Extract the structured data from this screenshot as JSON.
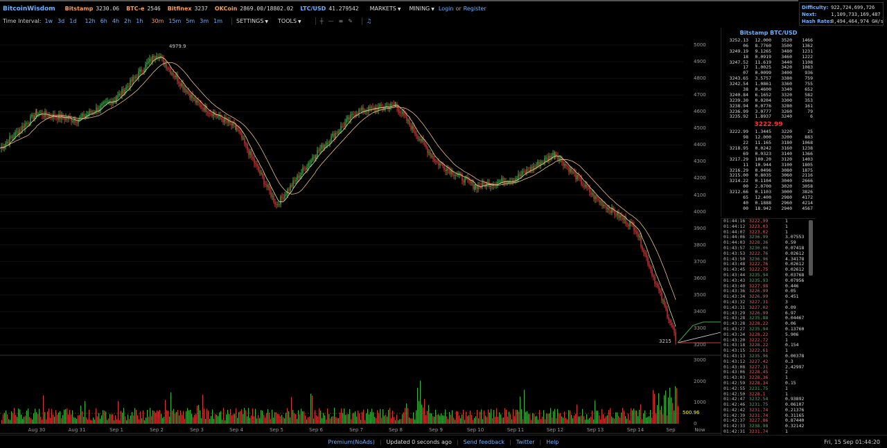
{
  "header": {
    "brand": "BitcoinWisdom",
    "markets": [
      {
        "name": "Bitstamp",
        "value": "3230.06"
      },
      {
        "name": "BTC-e",
        "value": "2546"
      },
      {
        "name": "Bitfinex",
        "value": "3237"
      },
      {
        "name": "OKCoin",
        "value": "2869.00/18802.02"
      },
      {
        "name": "LTC/USD",
        "value": "41.279542"
      }
    ],
    "menus": {
      "markets": "MARKETS",
      "mining": "MINING"
    },
    "login": "Login",
    "or": "or",
    "register": "Register"
  },
  "stats": {
    "difficulty_label": "Difficulty:",
    "difficulty": "922,724,699,726",
    "next_label": "Next:",
    "next": "1,109,733,169,487",
    "hashrate_label": "Hash Rate:",
    "hashrate": "8,494,464,974 GH/s"
  },
  "toolbar": {
    "label": "Time Interval:",
    "intervals": [
      "1w",
      "3d",
      "1d",
      "12h",
      "6h",
      "4h",
      "2h",
      "1h",
      "30m",
      "15m",
      "5m",
      "3m",
      "1m"
    ],
    "active_interval": "30m",
    "settings": "SETTINGS",
    "tools": "TOOLS",
    "icons": [
      "crosshair-icon",
      "horizontal-line-icon",
      "parallel-lines-icon",
      "pencil-icon",
      "bell-icon"
    ]
  },
  "chart_data": {
    "type": "line",
    "price_ticks": [
      "5000",
      "4900",
      "4800",
      "4700",
      "4600",
      "4500",
      "4400",
      "4300",
      "4200",
      "4100",
      "4000",
      "3900",
      "3800",
      "3700",
      "3600",
      "3500",
      "3400",
      "3300",
      "3200"
    ],
    "volume_ticks": [
      "3000",
      "2000",
      "1000",
      "0"
    ],
    "x_labels": [
      "Aug 30",
      "Aug 31",
      "Sep 1",
      "Sep 2",
      "Sep 3",
      "Sep 4",
      "Sep 5",
      "Sep 6",
      "Sep 7",
      "Sep 8",
      "Sep 9",
      "Sep 10",
      "Sep 11",
      "Sep 12",
      "Sep 13",
      "Sep 14",
      "Sep",
      "Now"
    ],
    "high_annotation": "4979.9",
    "low_annotation": "3215",
    "volume_marker": "500.96",
    "x": [
      "Aug 30",
      "Aug 31",
      "Sep 1",
      "Sep 2",
      "Sep 3",
      "Sep 4",
      "Sep 5",
      "Sep 6",
      "Sep 7",
      "Sep 8",
      "Sep 9",
      "Sep 10",
      "Sep 11",
      "Sep 12",
      "Sep 13",
      "Sep 14",
      "Sep 15"
    ],
    "values": [
      4590,
      4550,
      4680,
      4950,
      4650,
      4500,
      4040,
      4350,
      4600,
      4640,
      4300,
      4150,
      4200,
      4350,
      4080,
      3900,
      3250
    ],
    "ylim": [
      3200,
      5000
    ]
  },
  "orderbook": {
    "title": "Bitstamp BTC/USD",
    "mid_price": "3222.99",
    "asks": [
      [
        "3252.13",
        "12.000",
        "3520",
        "1466"
      ],
      [
        "06",
        "8.7760",
        "3500",
        "1362"
      ],
      [
        "3249.19",
        "9.1265",
        "3480",
        "1231"
      ],
      [
        "18",
        "0.0919",
        "3460",
        "1222"
      ],
      [
        "3247.52",
        "11.619",
        "3440",
        "1108"
      ],
      [
        "17",
        "1.0025",
        "3420",
        "1083"
      ],
      [
        "07",
        "0.0099",
        "3400",
        "936"
      ],
      [
        "3243.65",
        "3.5757",
        "3380",
        "759"
      ],
      [
        "3242.54",
        "1.0861",
        "3360",
        "755"
      ],
      [
        "38",
        "0.4600",
        "3340",
        "652"
      ],
      [
        "3240.84",
        "6.1652",
        "3320",
        "582"
      ],
      [
        "3239.30",
        "0.0204",
        "3300",
        "353"
      ],
      [
        "3238.94",
        "0.0776",
        "3280",
        "161"
      ],
      [
        "3236.99",
        "3.0777",
        "3260",
        "79"
      ],
      [
        "3235.92",
        "1.8937",
        "3240",
        "6"
      ]
    ],
    "bids": [
      [
        "3222.99",
        "1.3445",
        "3220",
        "25"
      ],
      [
        "98",
        "12.000",
        "3200",
        "883"
      ],
      [
        "22",
        "11.165",
        "3180",
        "1068"
      ],
      [
        "3218.95",
        "0.0242",
        "3160",
        "1238"
      ],
      [
        "69",
        "0.0323",
        "3140",
        "1366"
      ],
      [
        "3217.29",
        "100.20",
        "3120",
        "1403"
      ],
      [
        "11",
        "10.944",
        "3100",
        "1805"
      ],
      [
        "3216.29",
        "0.0496",
        "3080",
        "1875"
      ],
      [
        "3215.00",
        "0.8035",
        "3060",
        "2116"
      ],
      [
        "3214.22",
        "0.1104",
        "3040",
        "2666"
      ],
      [
        "00",
        "2.0700",
        "3020",
        "3058"
      ],
      [
        "3212.66",
        "0.1103",
        "3000",
        "3826"
      ],
      [
        "65",
        "12.400",
        "2980",
        "4172"
      ],
      [
        "40",
        "0.1888",
        "2960",
        "4214"
      ],
      [
        "00",
        "18.942",
        "2940",
        "4567"
      ]
    ]
  },
  "trades": [
    [
      "01:44:16",
      "3222.99",
      "down",
      "1"
    ],
    [
      "01:44:12",
      "3223.03",
      "down",
      "1"
    ],
    [
      "01:44:07",
      "3223.02",
      "down",
      "1"
    ],
    [
      "01:44:06",
      "3236.99",
      "up",
      "3.07553"
    ],
    [
      "01:44:03",
      "3228.36",
      "down",
      "0.59"
    ],
    [
      "01:43:57",
      "3230.06",
      "up",
      "0.07418"
    ],
    [
      "01:43:53",
      "3222.76",
      "down",
      "0.02612"
    ],
    [
      "01:43:50",
      "3236.96",
      "up",
      "4.34178"
    ],
    [
      "01:43:48",
      "3222.76",
      "down",
      "0.02612"
    ],
    [
      "01:43:45",
      "3222.75",
      "down",
      "0.02612"
    ],
    [
      "01:43:44",
      "3235.94",
      "up",
      "0.03768"
    ],
    [
      "01:43:43",
      "3235.93",
      "up",
      "0.07956"
    ],
    [
      "01:43:40",
      "3227.98",
      "down",
      "0.446"
    ],
    [
      "01:43:36",
      "3226.99",
      "down",
      "0.05"
    ],
    [
      "01:43:34",
      "3226.99",
      "down",
      "0.451"
    ],
    [
      "01:43:32",
      "3227.31",
      "down",
      "3"
    ],
    [
      "01:43:31",
      "3227.02",
      "down",
      "0.09"
    ],
    [
      "01:43:29",
      "3226.99",
      "down",
      "6.97"
    ],
    [
      "01:43:28",
      "3235.88",
      "up",
      "0.04467"
    ],
    [
      "01:43:28",
      "3228.22",
      "down",
      "0.06"
    ],
    [
      "01:43:27",
      "3235.94",
      "up",
      "0.13760"
    ],
    [
      "01:43:24",
      "3228.22",
      "down",
      "5.906"
    ],
    [
      "01:43:20",
      "3222.72",
      "down",
      "1"
    ],
    [
      "01:43:18",
      "3228.22",
      "down",
      "0.154"
    ],
    [
      "01:43:15",
      "3222.61",
      "down",
      "1"
    ],
    [
      "01:43:13",
      "3235.96",
      "up",
      "0.00378"
    ],
    [
      "01:43:12",
      "3227.42",
      "down",
      "0.3"
    ],
    [
      "01:43:08",
      "3227.31",
      "down",
      "2.42997"
    ],
    [
      "01:43:06",
      "3228.45",
      "down",
      "2"
    ],
    [
      "01:43:03",
      "3228.36",
      "down",
      "1"
    ],
    [
      "01:42:59",
      "3228.34",
      "down",
      "0.15"
    ],
    [
      "01:42:55",
      "3231.75",
      "up",
      "1"
    ],
    [
      "01:42:50",
      "3228.1",
      "down",
      "1"
    ],
    [
      "01:42:47",
      "3232.54",
      "up",
      "0.93892"
    ],
    [
      "01:42:46",
      "3231.75",
      "up",
      "0.06107"
    ],
    [
      "01:42:42",
      "3231.74",
      "down",
      "0.21376"
    ],
    [
      "01:42:39",
      "3231.74",
      "down",
      "0.31165"
    ],
    [
      "01:42:37",
      "3227.86",
      "down",
      "0.87440"
    ],
    [
      "01:42:33",
      "3238.98",
      "up",
      "0.32142"
    ],
    [
      "01:42:31",
      "3231.74",
      "down",
      "1"
    ]
  ],
  "footer": {
    "premium": "Premium(NoAds)",
    "updated": "Updated 0 seconds ago",
    "feedback": "Send feedback",
    "twitter": "Twitter",
    "help": "Help",
    "datetime": "Fri, 15 Sep 01:44:20"
  },
  "colors": {
    "accent": "#6cb2ff",
    "orange": "#ff9d4d",
    "up": "#4caf50",
    "down": "#ff5555"
  }
}
